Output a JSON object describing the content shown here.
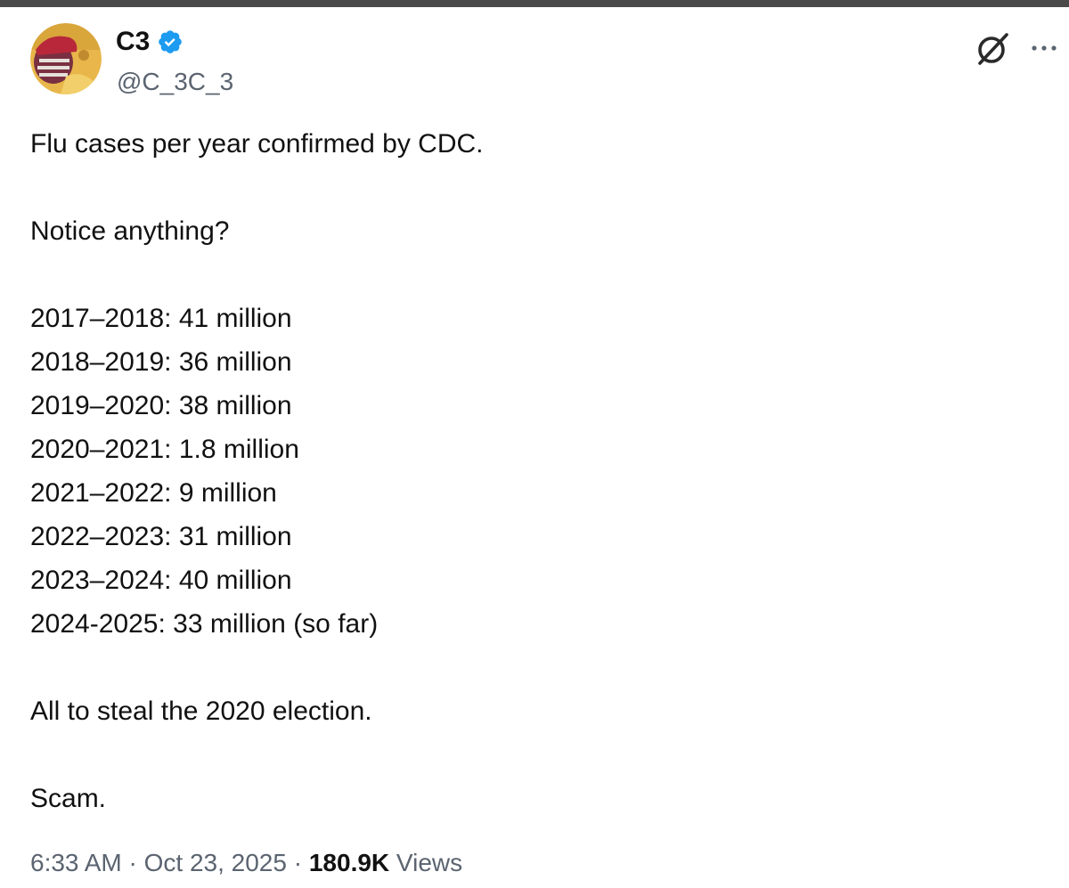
{
  "author": {
    "display_name": "C3",
    "handle": "@C_3C_3",
    "verified": true,
    "avatar_icon": "avatar-image"
  },
  "icons": {
    "verified": "verified-badge-icon",
    "grok": "grok-icon",
    "more": "more-options-icon"
  },
  "colors": {
    "verified_blue": "#1d9bf0",
    "text_primary": "#111111",
    "text_secondary": "#5b6470"
  },
  "tweet": {
    "line_intro": "Flu cases per year confirmed by CDC.",
    "line_question": "Notice anything?",
    "seasons": [
      "2017–2018: 41 million",
      "2018–2019: 36 million",
      "2019–2020: 38 million",
      "2020–2021: 1.8 million",
      "2021–2022: 9 million",
      "2022–2023: 31 million",
      "2023–2024: 40 million",
      "2024-2025: 33 million (so far)"
    ],
    "line_claim": "All to steal the 2020 election.",
    "line_end": "Scam."
  },
  "meta": {
    "time": "6:33 AM",
    "separator": " · ",
    "date": "Oct 23, 2025",
    "views_count": "180.9K",
    "views_label": " Views"
  }
}
